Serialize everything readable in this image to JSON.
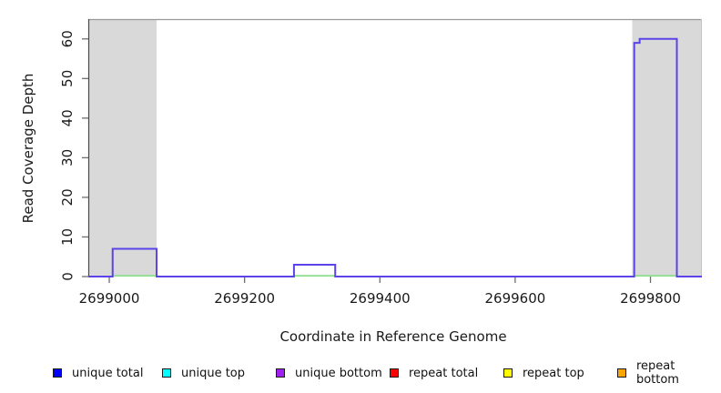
{
  "chart_data": {
    "type": "line",
    "subtype": "step-coverage",
    "title": "",
    "xlabel": "Coordinate in Reference Genome",
    "ylabel": "Read Coverage Depth",
    "xlim": [
      2698969,
      2699876
    ],
    "ylim": [
      0,
      65
    ],
    "xticks": [
      2699000,
      2699200,
      2699400,
      2699600,
      2699800
    ],
    "yticks": [
      0,
      10,
      20,
      30,
      40,
      50,
      60
    ],
    "grid": false,
    "shaded_regions": [
      {
        "start": 2698969,
        "end": 2699070,
        "color": "#d9d9d9"
      },
      {
        "start": 2699773,
        "end": 2699876,
        "color": "#d9d9d9"
      }
    ],
    "series": [
      {
        "name": "coverage-outline",
        "color": "#5a43e8",
        "segments": [
          {
            "from": 2698969,
            "to": 2699005,
            "value": 0
          },
          {
            "from": 2699005,
            "to": 2699070,
            "value": 7
          },
          {
            "from": 2699070,
            "to": 2699273,
            "value": 0
          },
          {
            "from": 2699273,
            "to": 2699334,
            "value": 3
          },
          {
            "from": 2699334,
            "to": 2699776,
            "value": 0
          },
          {
            "from": 2699776,
            "to": 2699784,
            "value": 59
          },
          {
            "from": 2699784,
            "to": 2699839,
            "value": 60
          },
          {
            "from": 2699839,
            "to": 2699876,
            "value": 0
          }
        ]
      },
      {
        "name": "baseline-under-peaks",
        "color": "#8ee08e",
        "baseline_segments": [
          {
            "from": 2699005,
            "to": 2699070
          },
          {
            "from": 2699273,
            "to": 2699334
          },
          {
            "from": 2699776,
            "to": 2699839
          }
        ]
      }
    ],
    "legend_position": "bottom",
    "legend": [
      {
        "label": "unique total",
        "color": "#0000ff"
      },
      {
        "label": "unique top",
        "color": "#00ffff"
      },
      {
        "label": "unique bottom",
        "color": "#a020f0"
      },
      {
        "label": "repeat total",
        "color": "#ff0000"
      },
      {
        "label": "repeat top",
        "color": "#ffff00"
      },
      {
        "label": "repeat bottom",
        "color": "#ffa500"
      }
    ],
    "colors": {
      "shaded_region": "#d9d9d9",
      "box_top_border": "#999999",
      "box_right_border": "#c4c4c4",
      "axis_line": "#4a4a4a",
      "tick_mark": "#6e6e6e",
      "tick_text": "#1a1a1a"
    }
  }
}
